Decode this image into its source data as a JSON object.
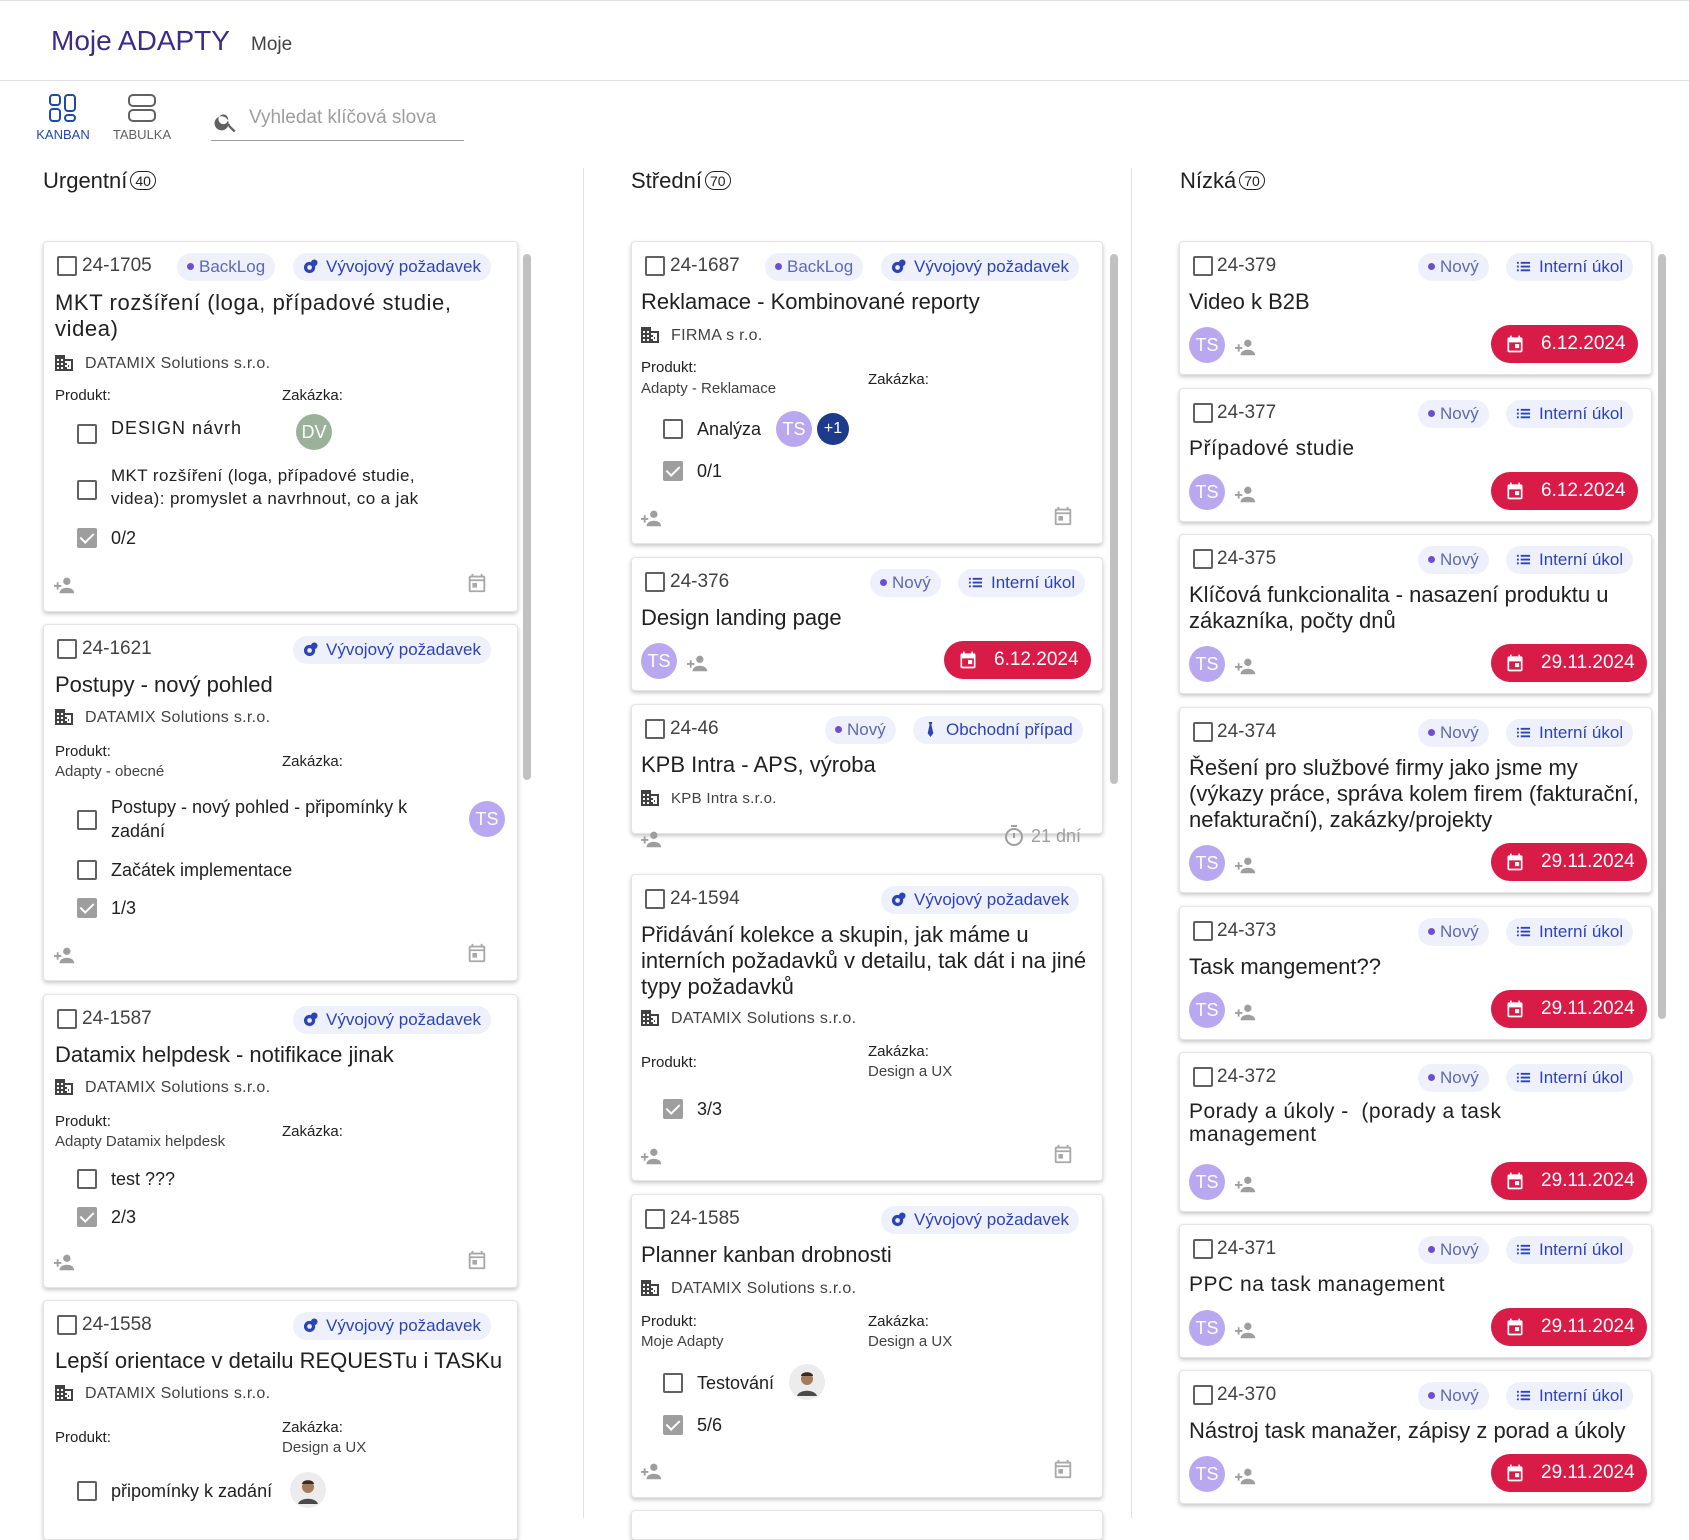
{
  "app": {
    "title": "Moje ADAPTY",
    "subtitle": "Moje"
  },
  "views": {
    "kanban": "KANBAN",
    "tabulka": "TABULKA"
  },
  "search": {
    "placeholder": "Vyhledat klíčová slova"
  },
  "labels": {
    "produkt": "Produkt:",
    "zakazka": "Zakázka:"
  },
  "columns": [
    {
      "name": "Urgentní",
      "count": "40"
    },
    {
      "name": "Střední",
      "count": "70"
    },
    {
      "name": "Nízká",
      "count": "70"
    }
  ],
  "colors": {
    "accent": "#1e4aa8",
    "date_chip": "#d81b47",
    "avatar": "#b9a8f0",
    "chip_bg": "#eef0fb"
  },
  "urgent": [
    {
      "id": "24-1705",
      "status": "BackLog",
      "type": "Vývojový požadavek",
      "title_lines": [
        "MKT rozšíření (loga, případové studie,",
        "videa)"
      ],
      "company": "DATAMIX Solutions s.r.o.",
      "product": "",
      "zakazka": "",
      "tasks": [
        {
          "text": "DESIGN návrh",
          "avatar": "DV"
        },
        {
          "text_lines": [
            "MKT rozšíření (loga, případové studie,",
            "videa): promyslet a navrhnout, co a jak"
          ]
        }
      ],
      "progress": "0/2"
    },
    {
      "id": "24-1621",
      "type": "Vývojový požadavek",
      "title": "Postupy - nový pohled",
      "company": "DATAMIX Solutions s.r.o.",
      "product": "Adapty - obecné",
      "zakazka": "",
      "tasks": [
        {
          "text_lines": [
            "Postupy - nový pohled - připomínky k",
            "zadání"
          ],
          "avatar": "TS"
        },
        {
          "text": "Začátek implementace"
        }
      ],
      "progress": "1/3"
    },
    {
      "id": "24-1587",
      "type": "Vývojový požadavek",
      "title": "Datamix helpdesk - notifikace jinak",
      "company": "DATAMIX Solutions s.r.o.",
      "product": "Adapty Datamix helpdesk",
      "zakazka": "",
      "tasks": [
        {
          "text": "test ???"
        }
      ],
      "progress": "2/3"
    },
    {
      "id": "24-1558",
      "type": "Vývojový požadavek",
      "title": "Lepší orientace v detailu REQUESTu i TASKu",
      "company": "DATAMIX Solutions s.r.o.",
      "product": "",
      "zakazka": "Design a UX",
      "tasks": [
        {
          "text": "připomínky k zadání"
        }
      ]
    }
  ],
  "medium": [
    {
      "id": "24-1687",
      "status": "BackLog",
      "type": "Vývojový požadavek",
      "title": "Reklamace - Kombinované reporty",
      "company": "FIRMA s r.o.",
      "product": "Adapty - Reklamace",
      "zakazka": "",
      "tasks": [
        {
          "text": "Analýza",
          "avatar": "TS",
          "extra": "+1"
        }
      ],
      "progress": "0/1"
    },
    {
      "id": "24-376",
      "status": "Nový",
      "type": "Interní úkol",
      "title": "Design landing page",
      "avatar": "TS",
      "date": "6.12.2024"
    },
    {
      "id": "24-46",
      "status": "Nový",
      "type": "Obchodní případ",
      "title": "KPB Intra - APS, výroba",
      "company": "KPB Intra s.r.o.",
      "days": "21 dní"
    },
    {
      "id": "24-1594",
      "type": "Vývojový požadavek",
      "title_lines": [
        "Přidávání kolekce a skupin, jak máme u",
        "interních požadavků v detailu, tak dát i na jiné",
        "typy požadavků"
      ],
      "company": "DATAMIX Solutions s.r.o.",
      "product": "",
      "zakazka": "Design a UX",
      "progress": "3/3"
    },
    {
      "id": "24-1585",
      "type": "Vývojový požadavek",
      "title": "Planner kanban drobnosti",
      "company": "DATAMIX Solutions s.r.o.",
      "product": "Moje Adapty",
      "zakazka": "Design a UX",
      "tasks": [
        {
          "text": "Testování"
        }
      ],
      "progress": "5/6"
    }
  ],
  "low": [
    {
      "id": "24-379",
      "status": "Nový",
      "type": "Interní úkol",
      "title": "Video k B2B",
      "avatar": "TS",
      "date": "6.12.2024"
    },
    {
      "id": "24-377",
      "status": "Nový",
      "type": "Interní úkol",
      "title": "Případové studie",
      "avatar": "TS",
      "date": "6.12.2024"
    },
    {
      "id": "24-375",
      "status": "Nový",
      "type": "Interní úkol",
      "title_lines": [
        "Klíčová funkcionalita - nasazení produktu u",
        "zákazníka, počty dnů"
      ],
      "avatar": "TS",
      "date": "29.11.2024"
    },
    {
      "id": "24-374",
      "status": "Nový",
      "type": "Interní úkol",
      "title_lines": [
        "Řešení pro službové firmy jako jsme my",
        "(výkazy práce, správa kolem firem (fakturační,",
        "nefakturační), zakázky/projekty"
      ],
      "avatar": "TS",
      "date": "29.11.2024"
    },
    {
      "id": "24-373",
      "status": "Nový",
      "type": "Interní úkol",
      "title": "Task mangement??",
      "avatar": "TS",
      "date": "29.11.2024"
    },
    {
      "id": "24-372",
      "status": "Nový",
      "type": "Interní úkol",
      "title_lines": [
        "Porady a úkoly -  (porady a task",
        "management"
      ],
      "avatar": "TS",
      "date": "29.11.2024"
    },
    {
      "id": "24-371",
      "status": "Nový",
      "type": "Interní úkol",
      "title": "PPC na task management",
      "avatar": "TS",
      "date": "29.11.2024"
    },
    {
      "id": "24-370",
      "status": "Nový",
      "type": "Interní úkol",
      "title": "Nástroj task manažer, zápisy z porad a úkoly",
      "avatar": "TS",
      "date": "29.11.2024"
    }
  ]
}
